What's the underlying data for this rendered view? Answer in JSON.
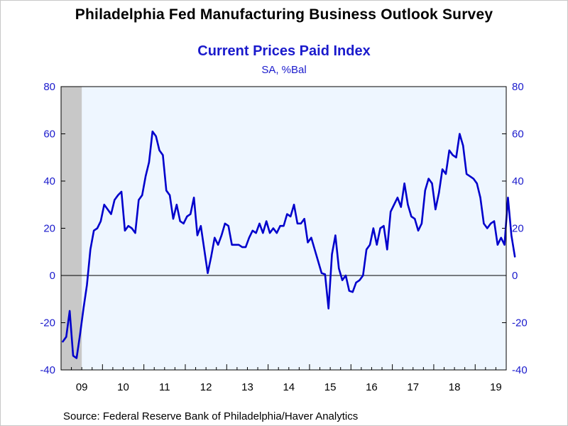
{
  "chart_data": {
    "type": "line",
    "title": "Philadelphia Fed Manufacturing Business Outlook Survey",
    "subtitle": "Current Prices Paid Index",
    "units": "SA, %Bal",
    "source": "Source:  Federal Reserve Bank of Philadelphia/Haver Analytics",
    "ylim": [
      -40,
      80
    ],
    "yticks": [
      -40,
      -20,
      0,
      20,
      40,
      60,
      80
    ],
    "x_start": "2009-01",
    "x_end": "2019-09",
    "x_tick_labels": [
      "09",
      "10",
      "11",
      "12",
      "13",
      "14",
      "15",
      "16",
      "17",
      "18",
      "19"
    ],
    "recession_shading": {
      "start": "2009-01",
      "end": "2009-06",
      "color": "#c8c8c8"
    },
    "colors": {
      "line": "#0000cc",
      "plot_background": "#eef6ff",
      "axis_text": "#1a1acc"
    },
    "series": [
      {
        "values": [
          -28,
          -26,
          -15,
          -34,
          -35,
          -25,
          -14,
          -4,
          11,
          19,
          20,
          23,
          30,
          28,
          26,
          32,
          34,
          35.5,
          19,
          21,
          20,
          18,
          32,
          34,
          42,
          48,
          61,
          59,
          53,
          51,
          36,
          34,
          24,
          30,
          23,
          22,
          25,
          26,
          33,
          17,
          21,
          11,
          1,
          8,
          16,
          13,
          17,
          22,
          21,
          13,
          13,
          13,
          12,
          12,
          16,
          19,
          18,
          22,
          18,
          23,
          18,
          20,
          18,
          21,
          21,
          26,
          25,
          30,
          22,
          22,
          24,
          14,
          16,
          11,
          6,
          1,
          0.5,
          -14,
          9,
          17,
          3,
          -2,
          0,
          -6.5,
          -7,
          -3,
          -2,
          0,
          11,
          13,
          20,
          13,
          20,
          21,
          11,
          27,
          30,
          33,
          29,
          39,
          30,
          25,
          24,
          19,
          22,
          36,
          41,
          39,
          28,
          35,
          45,
          43,
          53,
          51,
          50,
          60,
          55,
          43,
          42,
          41,
          39,
          33,
          22,
          20,
          22,
          23,
          13,
          16,
          13,
          33,
          17,
          8
        ]
      }
    ]
  }
}
